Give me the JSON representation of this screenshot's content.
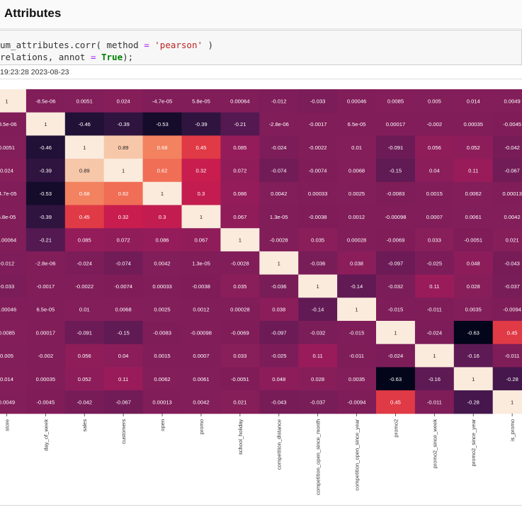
{
  "header": {
    "title": "Attributes"
  },
  "code": {
    "line1": {
      "prefix": "um_attributes.corr( method ",
      "eq": "=",
      "space": " ",
      "arg": "'pearson'",
      "suffix": " )"
    },
    "line2": {
      "prefix": "relations, annot ",
      "eq": "=",
      "space": " ",
      "kw": "True",
      "suffix": ");"
    }
  },
  "execution": {
    "timestamp": "19:23:28 2023-08-23"
  },
  "chart_data": {
    "type": "heatmap",
    "title": "",
    "colormap": "rocket",
    "vmin": -0.63,
    "vmax": 1,
    "columns": [
      "store",
      "day_of_week",
      "sales",
      "customers",
      "open",
      "promo",
      "school_holiday",
      "competition_distance",
      "competition_open_since_month",
      "competition_open_since_year",
      "promo2",
      "promo2_since_week",
      "promo2_since_year",
      "is_promo"
    ],
    "row_labels": [
      "store",
      "day_of_week",
      "sales",
      "customers",
      "open",
      "promo",
      "school_holiday",
      "competition_distance",
      "competition_open_since_month",
      "competition_open_since_year",
      "promo2",
      "promo2_since_week",
      "promo2_since_year",
      "is_promo"
    ],
    "annotations": [
      [
        "1",
        "-8.5e-06",
        "0.0051",
        "0.024",
        "-4.7e-05",
        "5.8e-05",
        "0.00064",
        "-0.012",
        "-0.033",
        "0.00046",
        "0.0085",
        "0.005",
        "0.014",
        "0.0049"
      ],
      [
        "-8.5e-06",
        "1",
        "-0.46",
        "-0.39",
        "-0.53",
        "-0.39",
        "-0.21",
        "-2.8e-06",
        "-0.0017",
        "6.5e-05",
        "0.00017",
        "-0.002",
        "0.00035",
        "-0.0045"
      ],
      [
        "0.0051",
        "-0.46",
        "1",
        "0.89",
        "0.68",
        "0.45",
        "0.085",
        "-0.024",
        "-0.0022",
        "0.01",
        "-0.091",
        "0.056",
        "0.052",
        "-0.042"
      ],
      [
        "0.024",
        "-0.39",
        "0.89",
        "1",
        "0.62",
        "0.32",
        "0.072",
        "-0.074",
        "-0.0074",
        "0.0068",
        "-0.15",
        "0.04",
        "0.11",
        "-0.067"
      ],
      [
        "-4.7e-05",
        "-0.53",
        "0.68",
        "0.62",
        "1",
        "0.3",
        "0.086",
        "0.0042",
        "0.00033",
        "0.0025",
        "-0.0083",
        "0.0015",
        "0.0062",
        "0.00013"
      ],
      [
        "5.8e-05",
        "-0.39",
        "0.45",
        "0.32",
        "0.3",
        "1",
        "0.067",
        "1.3e-05",
        "-0.0038",
        "0.0012",
        "-0.00098",
        "0.0007",
        "0.0061",
        "0.0042"
      ],
      [
        "0.00064",
        "-0.21",
        "0.085",
        "0.072",
        "0.086",
        "0.067",
        "1",
        "-0.0028",
        "0.035",
        "0.00028",
        "-0.0069",
        "0.033",
        "-0.0051",
        "0.021"
      ],
      [
        "-0.012",
        "-2.8e-06",
        "-0.024",
        "-0.074",
        "0.0042",
        "1.3e-05",
        "-0.0028",
        "1",
        "-0.036",
        "0.038",
        "-0.097",
        "-0.025",
        "0.048",
        "-0.043"
      ],
      [
        "-0.033",
        "-0.0017",
        "-0.0022",
        "-0.0074",
        "0.00033",
        "-0.0038",
        "0.035",
        "-0.036",
        "1",
        "-0.14",
        "-0.032",
        "0.11",
        "0.028",
        "-0.037"
      ],
      [
        "0.00046",
        "6.5e-05",
        "0.01",
        "0.0068",
        "0.0025",
        "0.0012",
        "0.00028",
        "0.038",
        "-0.14",
        "1",
        "-0.015",
        "-0.011",
        "0.0035",
        "-0.0094"
      ],
      [
        "0.0085",
        "0.00017",
        "-0.091",
        "-0.15",
        "-0.0083",
        "-0.00098",
        "-0.0069",
        "-0.097",
        "-0.032",
        "-0.015",
        "1",
        "-0.024",
        "-0.63",
        "0.45"
      ],
      [
        "0.005",
        "-0.002",
        "0.056",
        "0.04",
        "0.0015",
        "0.0007",
        "0.033",
        "-0.025",
        "0.11",
        "-0.011",
        "-0.024",
        "1",
        "-0.16",
        "-0.011"
      ],
      [
        "0.014",
        "0.00035",
        "0.052",
        "0.11",
        "0.0062",
        "0.0061",
        "-0.0051",
        "0.048",
        "0.028",
        "0.0035",
        "-0.63",
        "-0.16",
        "1",
        "-0.28"
      ],
      [
        "0.0049",
        "-0.0045",
        "-0.042",
        "-0.067",
        "0.00013",
        "0.0042",
        "0.021",
        "-0.043",
        "-0.037",
        "-0.0094",
        "0.45",
        "-0.011",
        "-0.28",
        "1"
      ]
    ],
    "row_labels_visible": false,
    "colorbar_visible": false
  }
}
